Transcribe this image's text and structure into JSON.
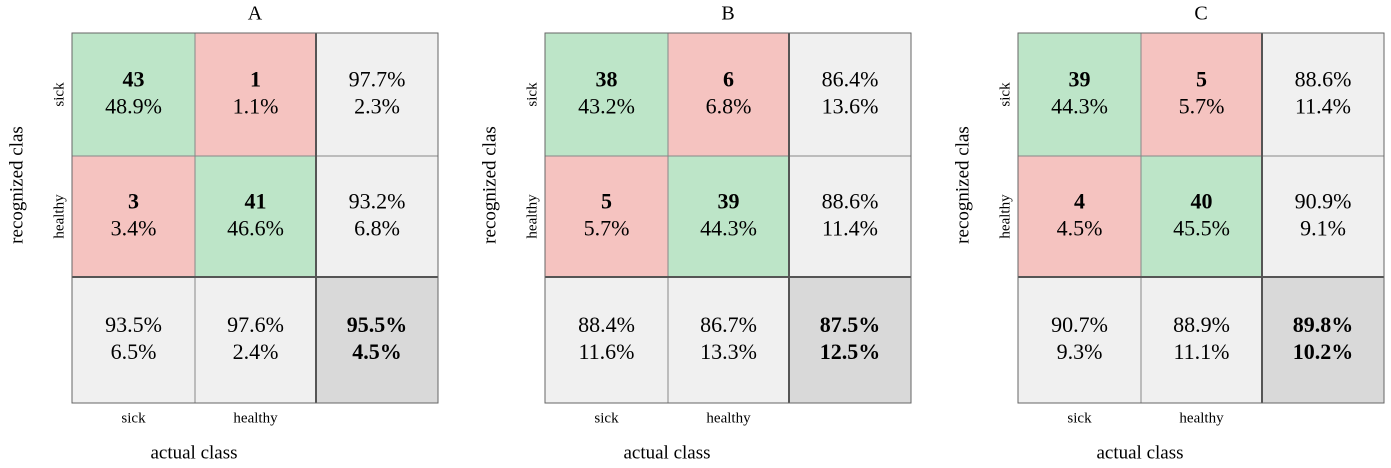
{
  "panels": [
    {
      "title": "A",
      "y_label": "recognized clas",
      "x_label": "actual class",
      "row_labels": [
        "sick",
        "healthy"
      ],
      "col_labels": [
        "sick",
        "healthy"
      ],
      "cells": [
        [
          [
            "43",
            "48.9%"
          ],
          [
            "1",
            "1.1%"
          ],
          [
            "97.7%",
            "2.3%"
          ]
        ],
        [
          [
            "3",
            "3.4%"
          ],
          [
            "41",
            "46.6%"
          ],
          [
            "93.2%",
            "6.8%"
          ]
        ],
        [
          [
            "93.5%",
            "6.5%"
          ],
          [
            "97.6%",
            "2.4%"
          ],
          [
            "95.5%",
            "4.5%"
          ]
        ]
      ]
    },
    {
      "title": "B",
      "y_label": "recognized clas",
      "x_label": "actual class",
      "row_labels": [
        "sick",
        "healthy"
      ],
      "col_labels": [
        "sick",
        "healthy"
      ],
      "cells": [
        [
          [
            "38",
            "43.2%"
          ],
          [
            "6",
            "6.8%"
          ],
          [
            "86.4%",
            "13.6%"
          ]
        ],
        [
          [
            "5",
            "5.7%"
          ],
          [
            "39",
            "44.3%"
          ],
          [
            "88.6%",
            "11.4%"
          ]
        ],
        [
          [
            "88.4%",
            "11.6%"
          ],
          [
            "86.7%",
            "13.3%"
          ],
          [
            "87.5%",
            "12.5%"
          ]
        ]
      ]
    },
    {
      "title": "C",
      "y_label": "recognized clas",
      "x_label": "actual class",
      "row_labels": [
        "sick",
        "healthy"
      ],
      "col_labels": [
        "sick",
        "healthy"
      ],
      "cells": [
        [
          [
            "39",
            "44.3%"
          ],
          [
            "5",
            "5.7%"
          ],
          [
            "88.6%",
            "11.4%"
          ]
        ],
        [
          [
            "4",
            "4.5%"
          ],
          [
            "40",
            "45.5%"
          ],
          [
            "90.9%",
            "9.1%"
          ]
        ],
        [
          [
            "90.7%",
            "9.3%"
          ],
          [
            "88.9%",
            "11.1%"
          ],
          [
            "89.8%",
            "10.2%"
          ]
        ]
      ]
    }
  ]
}
